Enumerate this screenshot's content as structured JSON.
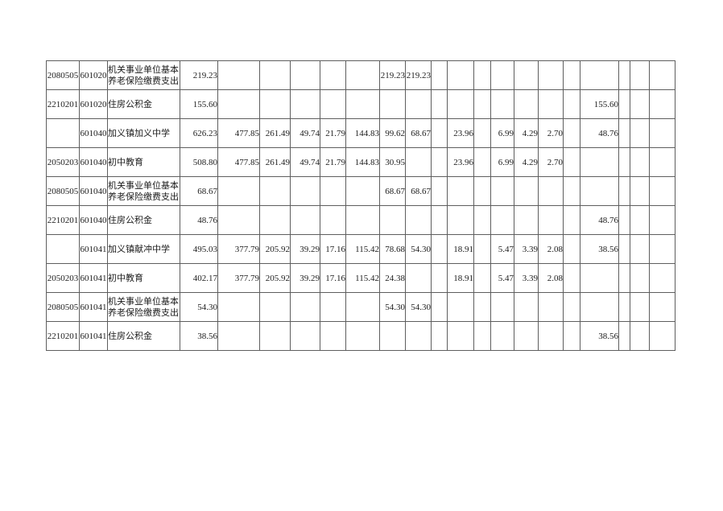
{
  "page": {
    "background_color": "#ffffff"
  },
  "table": {
    "grid_color": "#5e5e5e",
    "text_color": "#1c1c1c",
    "columns": [
      {
        "name": "program-code",
        "width": 41,
        "align": "center"
      },
      {
        "name": "unit-code",
        "width": 35,
        "align": "center"
      },
      {
        "name": "item-name",
        "width": 90,
        "align": "left"
      },
      {
        "name": "amount-total",
        "width": 47,
        "align": "right"
      },
      {
        "name": "amount-col-5",
        "width": 52,
        "align": "right"
      },
      {
        "name": "amount-col-6",
        "width": 38,
        "align": "right"
      },
      {
        "name": "amount-col-7",
        "width": 37,
        "align": "right"
      },
      {
        "name": "amount-col-8",
        "width": 32,
        "align": "right"
      },
      {
        "name": "amount-col-9",
        "width": 42,
        "align": "right"
      },
      {
        "name": "amount-col-10",
        "width": 32,
        "align": "right"
      },
      {
        "name": "amount-col-11",
        "width": 32,
        "align": "right"
      },
      {
        "name": "amount-col-12",
        "width": 20,
        "align": "right"
      },
      {
        "name": "amount-col-13",
        "width": 33,
        "align": "right"
      },
      {
        "name": "amount-col-14",
        "width": 21,
        "align": "right"
      },
      {
        "name": "amount-col-15",
        "width": 29,
        "align": "right"
      },
      {
        "name": "amount-col-16",
        "width": 30,
        "align": "right"
      },
      {
        "name": "amount-col-17",
        "width": 31,
        "align": "right"
      },
      {
        "name": "amount-col-18",
        "width": 21,
        "align": "right"
      },
      {
        "name": "amount-col-19",
        "width": 48,
        "align": "right"
      },
      {
        "name": "amount-col-20",
        "width": 14,
        "align": "right"
      },
      {
        "name": "amount-col-21",
        "width": 24,
        "align": "right"
      },
      {
        "name": "amount-col-22",
        "width": 32,
        "align": "right"
      }
    ],
    "rows": [
      {
        "cells": [
          "2080505",
          "601020",
          "机关事业单位基本养老保险缴费支出",
          "219.23",
          "",
          "",
          "",
          "",
          "",
          "219.23",
          "219.23",
          "",
          "",
          "",
          "",
          "",
          "",
          "",
          "",
          "",
          "",
          ""
        ]
      },
      {
        "cells": [
          "2210201",
          "601020",
          "住房公积金",
          "155.60",
          "",
          "",
          "",
          "",
          "",
          "",
          "",
          "",
          "",
          "",
          "",
          "",
          "",
          "",
          "155.60",
          "",
          "",
          ""
        ]
      },
      {
        "cells": [
          "",
          "601040",
          "加义镇加义中学",
          "626.23",
          "477.85",
          "261.49",
          "49.74",
          "21.79",
          "144.83",
          "99.62",
          "68.67",
          "",
          "23.96",
          "",
          "6.99",
          "4.29",
          "2.70",
          "",
          "48.76",
          "",
          "",
          ""
        ]
      },
      {
        "cells": [
          "2050203",
          "601040",
          "初中教育",
          "508.80",
          "477.85",
          "261.49",
          "49.74",
          "21.79",
          "144.83",
          "30.95",
          "",
          "",
          "23.96",
          "",
          "6.99",
          "4.29",
          "2.70",
          "",
          "",
          "",
          "",
          ""
        ]
      },
      {
        "cells": [
          "2080505",
          "601040",
          "机关事业单位基本养老保险缴费支出",
          "68.67",
          "",
          "",
          "",
          "",
          "",
          "68.67",
          "68.67",
          "",
          "",
          "",
          "",
          "",
          "",
          "",
          "",
          "",
          "",
          ""
        ]
      },
      {
        "cells": [
          "2210201",
          "601040",
          "住房公积金",
          "48.76",
          "",
          "",
          "",
          "",
          "",
          "",
          "",
          "",
          "",
          "",
          "",
          "",
          "",
          "",
          "48.76",
          "",
          "",
          ""
        ]
      },
      {
        "cells": [
          "",
          "601041",
          "加义镇献冲中学",
          "495.03",
          "377.79",
          "205.92",
          "39.29",
          "17.16",
          "115.42",
          "78.68",
          "54.30",
          "",
          "18.91",
          "",
          "5.47",
          "3.39",
          "2.08",
          "",
          "38.56",
          "",
          "",
          ""
        ]
      },
      {
        "cells": [
          "2050203",
          "601041",
          "初中教育",
          "402.17",
          "377.79",
          "205.92",
          "39.29",
          "17.16",
          "115.42",
          "24.38",
          "",
          "",
          "18.91",
          "",
          "5.47",
          "3.39",
          "2.08",
          "",
          "",
          "",
          "",
          ""
        ]
      },
      {
        "cells": [
          "2080505",
          "601041",
          "机关事业单位基本养老保险缴费支出",
          "54.30",
          "",
          "",
          "",
          "",
          "",
          "54.30",
          "54.30",
          "",
          "",
          "",
          "",
          "",
          "",
          "",
          "",
          "",
          "",
          ""
        ]
      },
      {
        "cells": [
          "2210201",
          "601041",
          "住房公积金",
          "38.56",
          "",
          "",
          "",
          "",
          "",
          "",
          "",
          "",
          "",
          "",
          "",
          "",
          "",
          "",
          "38.56",
          "",
          "",
          ""
        ]
      }
    ]
  }
}
